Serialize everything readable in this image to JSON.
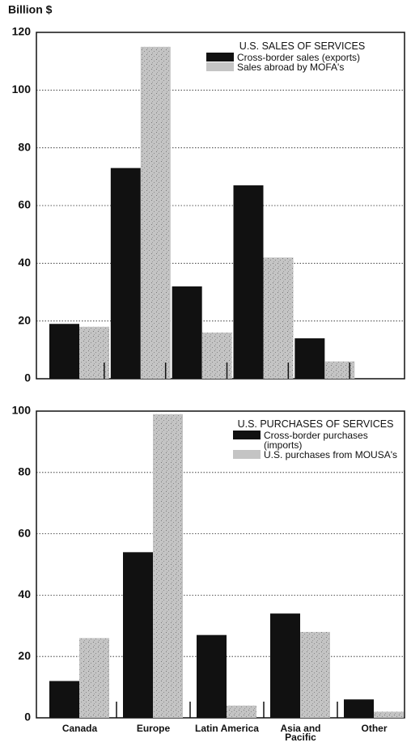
{
  "chart_data": [
    {
      "type": "bar",
      "ylabel": "Billion $",
      "legend_title": "U.S. SALES OF SERVICES",
      "ylim": [
        0,
        120
      ],
      "yticks": [
        0,
        20,
        40,
        60,
        80,
        100,
        120
      ],
      "grid": true,
      "series": [
        {
          "name": "Cross-border sales (exports)",
          "color": "#111111",
          "values": [
            19,
            73,
            32,
            67,
            14,
            0
          ]
        },
        {
          "name": "Sales abroad by MOFA's",
          "color": "#c4c4c4",
          "values": [
            18,
            115,
            16,
            42,
            6,
            0
          ]
        }
      ]
    },
    {
      "type": "bar",
      "legend_title": "U.S. PURCHASES OF SERVICES",
      "categories": [
        "Canada",
        "Europe",
        "Latin America",
        "Asia and Pacific",
        "Other"
      ],
      "ylim": [
        0,
        100
      ],
      "yticks": [
        0,
        20,
        40,
        60,
        80,
        100
      ],
      "grid": true,
      "series": [
        {
          "name": "Cross-border purchases (imports)",
          "color": "#111111",
          "values": [
            12,
            54,
            27,
            34,
            6
          ]
        },
        {
          "name": "U.S. purchases from MOUSA's",
          "color": "#c4c4c4",
          "values": [
            26,
            99,
            4,
            28,
            2
          ]
        }
      ]
    }
  ]
}
